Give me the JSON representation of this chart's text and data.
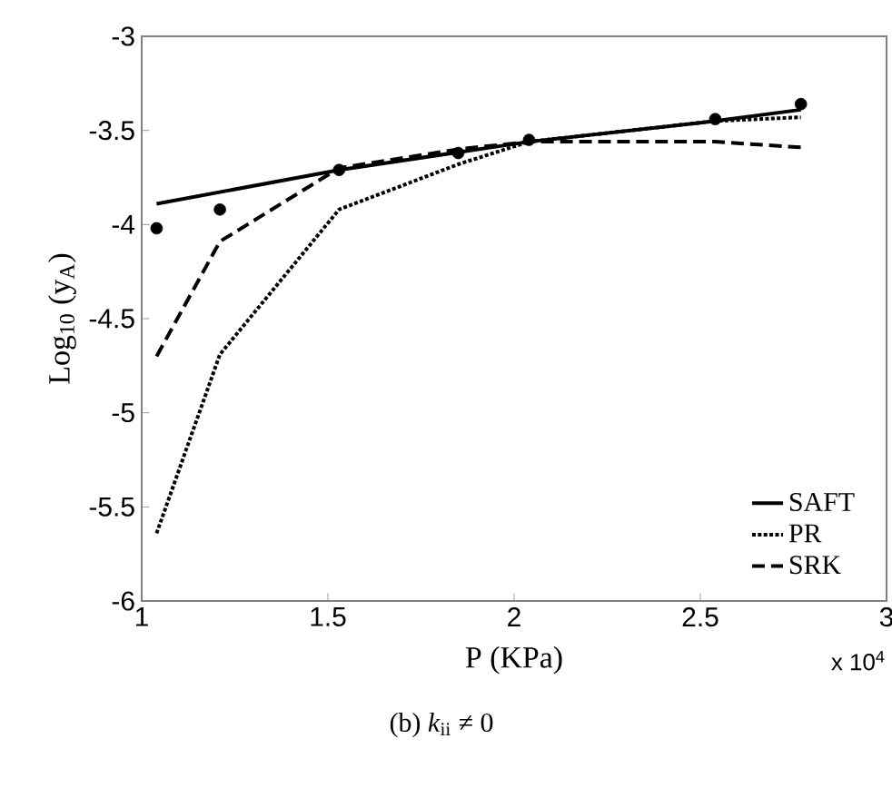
{
  "chart_data": {
    "type": "line",
    "xlabel": "P (KPa)",
    "ylabel": "Log$_{10}$ (y$_{A}$)",
    "xlim": [
      1,
      3
    ],
    "xticks": [
      1,
      1.5,
      2,
      2.5,
      3
    ],
    "ylim": [
      -6,
      -3
    ],
    "yticks": [
      -6,
      -5.5,
      -5,
      -4.5,
      -4,
      -3.5,
      -3
    ],
    "legend": "bottom right",
    "grid": false,
    "annotations": [
      "(b) *k*$_{ii}$ ≠ 0",
      "x 10$^{4}$"
    ],
    "series": [
      {
        "name": "SAFT",
        "color": "#000000",
        "line_style": "solid",
        "marker": "none",
        "x": [
          1.04,
          1.53,
          2.04,
          2.54,
          2.77
        ],
        "values": [
          -3.89,
          -3.71,
          -3.56,
          -3.45,
          -3.39
        ]
      },
      {
        "name": "PR",
        "color": "#000000",
        "line_style": "dotted",
        "marker": "none",
        "x": [
          1.04,
          1.21,
          1.53,
          1.85,
          2.04,
          2.54,
          2.77
        ],
        "values": [
          -5.64,
          -4.69,
          -3.92,
          -3.68,
          -3.56,
          -3.45,
          -3.43
        ]
      },
      {
        "name": "SRK",
        "color": "#000000",
        "line_style": "dashed",
        "marker": "none",
        "x": [
          1.04,
          1.21,
          1.53,
          1.85,
          2.04,
          2.3,
          2.54,
          2.77
        ],
        "values": [
          -4.7,
          -4.09,
          -3.7,
          -3.6,
          -3.56,
          -3.56,
          -3.56,
          -3.59
        ]
      },
      {
        "type": "scatter",
        "color": "#000000",
        "marker": "circle",
        "x": [
          1.04,
          1.21,
          1.53,
          1.85,
          2.04,
          2.54,
          2.77
        ],
        "values": [
          -4.02,
          -3.92,
          -3.71,
          -3.62,
          -3.55,
          -3.44,
          -3.36
        ]
      }
    ]
  }
}
